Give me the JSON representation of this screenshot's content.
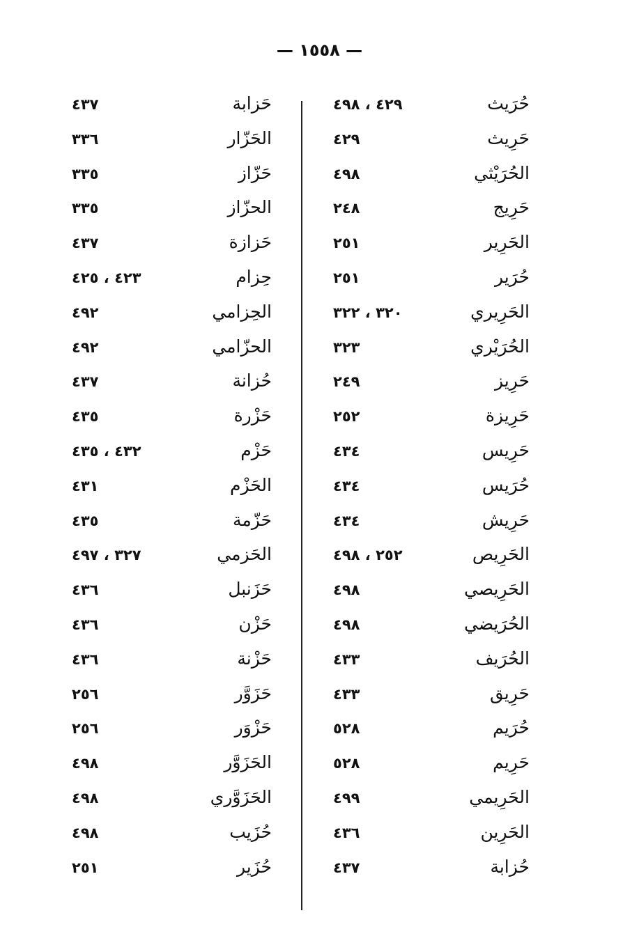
{
  "page_number": "— ١٥٥٨ —",
  "right_column": [
    {
      "name": "حُرَيث",
      "pages": "٤٢٩ ، ٤٩٨"
    },
    {
      "name": "حَرِيث",
      "pages": "٤٢٩"
    },
    {
      "name": "الحُرَيْثي",
      "pages": "٤٩٨"
    },
    {
      "name": "حَرِيج",
      "pages": "٢٤٨"
    },
    {
      "name": "الحَرِير",
      "pages": "٢٥١"
    },
    {
      "name": "حُرَير",
      "pages": "٢٥١"
    },
    {
      "name": "الحَرِيري",
      "pages": "٣٢٠ ، ٣٢٢"
    },
    {
      "name": "الحُرَيْري",
      "pages": "٣٢٣"
    },
    {
      "name": "حَرِيز",
      "pages": "٢٤٩"
    },
    {
      "name": "حَرِيزة",
      "pages": "٢٥٢"
    },
    {
      "name": "حَرِيس",
      "pages": "٤٣٤"
    },
    {
      "name": "حُرَيس",
      "pages": "٤٣٤"
    },
    {
      "name": "حَرِيش",
      "pages": "٤٣٤"
    },
    {
      "name": "الحَرِيص",
      "pages": "٢٥٢ ، ٤٩٨"
    },
    {
      "name": "الحَرِيصي",
      "pages": "٤٩٨"
    },
    {
      "name": "الحُرَيضي",
      "pages": "٤٩٨"
    },
    {
      "name": "الحُرَيف",
      "pages": "٤٣٣"
    },
    {
      "name": "حَرِيق",
      "pages": "٤٣٣"
    },
    {
      "name": "حُرَيم",
      "pages": "٥٢٨"
    },
    {
      "name": "حَرِيم",
      "pages": "٥٢٨"
    },
    {
      "name": "الحَرِيمي",
      "pages": "٤٩٩"
    },
    {
      "name": "الحَرِين",
      "pages": "٤٣٦"
    },
    {
      "name": "حُزابة",
      "pages": "٤٣٧"
    }
  ],
  "left_column": [
    {
      "name": "حَزابة",
      "pages": "٤٣٧"
    },
    {
      "name": "الحَزّار",
      "pages": "٣٣٦"
    },
    {
      "name": "حَزّاز",
      "pages": "٣٣٥"
    },
    {
      "name": "الحزّاز",
      "pages": "٣٣٥"
    },
    {
      "name": "حَزازة",
      "pages": "٤٣٧"
    },
    {
      "name": "حِزام",
      "pages": "٤٢٣ ، ٤٢٥"
    },
    {
      "name": "الحِزامي",
      "pages": "٤٩٢"
    },
    {
      "name": "الحزّامي",
      "pages": "٤٩٢"
    },
    {
      "name": "حُزانة",
      "pages": "٤٣٧"
    },
    {
      "name": "حَزْرة",
      "pages": "٤٣٥"
    },
    {
      "name": "حَزْم",
      "pages": "٤٣٢ ، ٤٣٥"
    },
    {
      "name": "الحَزْم",
      "pages": "٤٣١"
    },
    {
      "name": "حَزّمة",
      "pages": "٤٣٥"
    },
    {
      "name": "الحَزمي",
      "pages": "٣٢٧ ، ٤٩٧"
    },
    {
      "name": "حَزَنبل",
      "pages": "٤٣٦"
    },
    {
      "name": "حَزْن",
      "pages": "٤٣٦"
    },
    {
      "name": "حَزْنة",
      "pages": "٤٣٦"
    },
    {
      "name": "حَزَوَّر",
      "pages": "٢٥٦"
    },
    {
      "name": "حَزْوَر",
      "pages": "٢٥٦"
    },
    {
      "name": "الحَزَوَّر",
      "pages": "٤٩٨"
    },
    {
      "name": "الحَزَوَّري",
      "pages": "٤٩٨"
    },
    {
      "name": "حُزَيب",
      "pages": "٤٩٨"
    },
    {
      "name": "حُزَير",
      "pages": "٢٥١"
    }
  ]
}
